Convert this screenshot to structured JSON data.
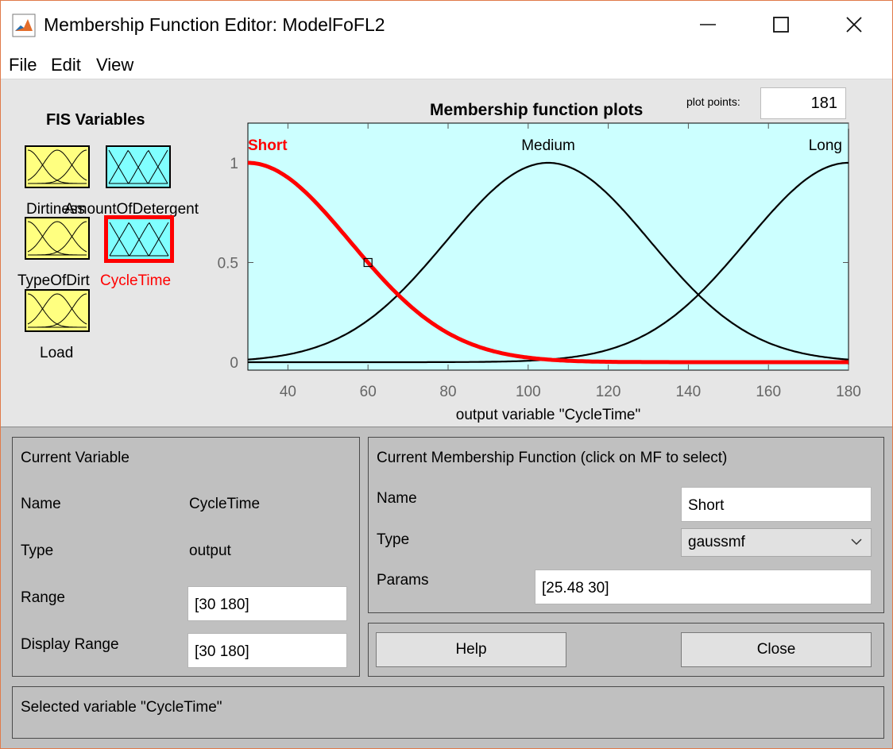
{
  "window": {
    "title": "Membership Function Editor: ModelFoFL2",
    "controls": {
      "minimize": "—",
      "maximize": "☐",
      "close": "✕"
    }
  },
  "menu": {
    "items": [
      "File",
      "Edit",
      "View"
    ]
  },
  "fis": {
    "title": "FIS Variables",
    "variables": [
      {
        "label": "Dirtiness",
        "role": "input",
        "color": "#ffff80"
      },
      {
        "label": "AmountOfDetergent",
        "role": "output",
        "color": "#80ffff"
      },
      {
        "label": "TypeOfDirt",
        "role": "input",
        "color": "#ffff80"
      },
      {
        "label": "CycleTime",
        "role": "output",
        "color": "#80ffff",
        "selected": true
      },
      {
        "label": "Load",
        "role": "input",
        "color": "#ffff80"
      }
    ]
  },
  "plot": {
    "title": "Membership function plots",
    "plot_points_label": "plot points:",
    "plot_points_value": "181"
  },
  "chart_data": {
    "type": "line",
    "title": "Membership function plots",
    "xlabel": "output variable \"CycleTime\"",
    "ylabel": "",
    "xlim": [
      30,
      180
    ],
    "ylim": [
      0,
      1
    ],
    "x_ticks": [
      40,
      60,
      80,
      100,
      120,
      140,
      160,
      180
    ],
    "y_ticks": [
      0,
      0.5,
      1
    ],
    "y_tick_labels": [
      "0",
      "0.5",
      "1"
    ],
    "background": "#ccffff",
    "grid": false,
    "series": [
      {
        "name": "Short",
        "function": "gaussmf",
        "params": [
          25.48,
          30
        ],
        "color": "#ff0000",
        "selected": true
      },
      {
        "name": "Medium",
        "function": "gaussmf",
        "params": [
          25.48,
          105
        ],
        "color": "#000000"
      },
      {
        "name": "Long",
        "function": "gaussmf",
        "params": [
          25.48,
          180
        ],
        "color": "#000000"
      }
    ],
    "marker": {
      "x": 60,
      "y": 0.5
    }
  },
  "current_variable": {
    "title": "Current Variable",
    "name_label": "Name",
    "name_value": "CycleTime",
    "type_label": "Type",
    "type_value": "output",
    "range_label": "Range",
    "range_value": "[30 180]",
    "display_range_label": "Display Range",
    "display_range_value": "[30 180]"
  },
  "current_mf": {
    "title": "Current Membership Function (click on MF to select)",
    "name_label": "Name",
    "name_value": "Short",
    "type_label": "Type",
    "type_value": "gaussmf",
    "params_label": "Params",
    "params_value": "[25.48 30]"
  },
  "buttons": {
    "help": "Help",
    "close": "Close"
  },
  "status": {
    "text": "Selected variable \"CycleTime\""
  }
}
